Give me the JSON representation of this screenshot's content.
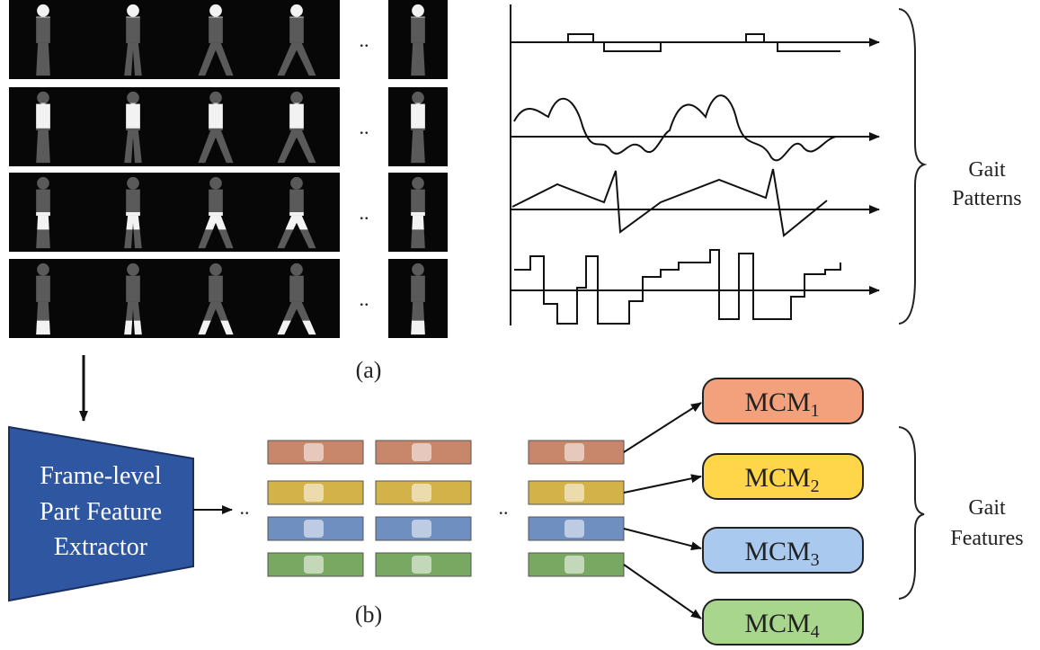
{
  "panel_a": {
    "label": "(a)",
    "ellipsis": [
      "..",
      "..",
      "..",
      ".."
    ],
    "brace_label": [
      "Gait",
      "Patterns"
    ]
  },
  "panel_b": {
    "label": "(b)",
    "extractor": {
      "lines": [
        "Frame-level",
        "Part Feature",
        "Extractor"
      ]
    },
    "ellipsis": [
      "..",
      ".."
    ],
    "modules": [
      {
        "name": "MCM",
        "index": "1"
      },
      {
        "name": "MCM",
        "index": "2"
      },
      {
        "name": "MCM",
        "index": "3"
      },
      {
        "name": "MCM",
        "index": "4"
      }
    ],
    "brace_label": [
      "Gait",
      "Features"
    ]
  }
}
